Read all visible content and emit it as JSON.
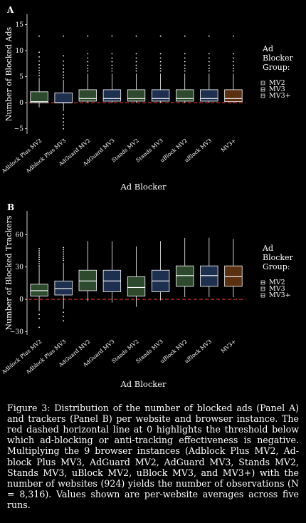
{
  "chart_data": [
    {
      "type": "box",
      "panel_label": "A",
      "xlabel": "Ad Blocker",
      "ylabel": "Number of Blocked Ads",
      "ylim": [
        -6,
        17
      ],
      "yticks": [
        -5,
        0,
        5,
        10,
        15
      ],
      "categories": [
        "Adblock Plus MV2",
        "Adblock Plus MV3",
        "AdGuard MV2",
        "AdGuard MV3",
        "Stands MV2",
        "Stands MV3",
        "uBlock MV2",
        "uBlock MV3",
        "MV3+"
      ],
      "groups": [
        "MV2",
        "MV3",
        "MV2",
        "MV3",
        "MV2",
        "MV3",
        "MV2",
        "MV3",
        "MV3+"
      ],
      "box_q1": [
        0.0,
        0.0,
        0.3,
        0.3,
        0.3,
        0.3,
        0.3,
        0.3,
        0.2
      ],
      "box_median": [
        0.2,
        0.0,
        0.8,
        0.8,
        0.8,
        0.8,
        0.8,
        0.8,
        0.8
      ],
      "box_q3": [
        2.1,
        1.9,
        2.5,
        2.5,
        2.5,
        2.5,
        2.5,
        2.5,
        2.5
      ],
      "whisker_low": [
        -0.9,
        -1.6,
        0.0,
        0.0,
        0.0,
        0.0,
        0.0,
        0.0,
        0.0
      ],
      "whisker_high": [
        4.8,
        4.4,
        5.6,
        5.6,
        5.6,
        5.6,
        5.6,
        5.6,
        5.6
      ],
      "outliers_high": [
        [
          5.2,
          5.7,
          6.2,
          6.7,
          7.3,
          8.0,
          8.8,
          9.7,
          12.8
        ],
        [
          4.8,
          5.3,
          5.9,
          6.5,
          7.2,
          8.0,
          9.0,
          12.8
        ],
        [
          6.1,
          6.6,
          7.2,
          7.9,
          8.6,
          9.4,
          12.8
        ],
        [
          6.1,
          6.6,
          7.2,
          7.9,
          8.6,
          9.4,
          12.8
        ],
        [
          6.1,
          6.6,
          7.2,
          7.9,
          8.6,
          9.4,
          12.8
        ],
        [
          6.1,
          6.6,
          7.2,
          7.9,
          8.6,
          9.4,
          12.8
        ],
        [
          6.1,
          6.6,
          7.2,
          7.9,
          8.6,
          9.4,
          12.8
        ],
        [
          6.1,
          6.6,
          7.2,
          7.9,
          8.6,
          9.4,
          12.8
        ],
        [
          6.1,
          6.6,
          7.2,
          7.9,
          8.6,
          9.4,
          12.8
        ]
      ],
      "outliers_low": [
        [],
        [
          -2.3,
          -3.0,
          -3.7,
          -4.3,
          -5.0
        ],
        [],
        [],
        [],
        [],
        [],
        [],
        []
      ],
      "reference_line": 0,
      "legend": {
        "title": "Ad Blocker Group:",
        "entries": [
          "MV2",
          "MV3",
          "MV3+"
        ],
        "placement": "right"
      }
    },
    {
      "type": "box",
      "panel_label": "B",
      "xlabel": "Ad Blocker",
      "ylabel": "Number of Blocked Trackers",
      "ylim": [
        -33,
        82
      ],
      "yticks": [
        -30,
        0,
        30,
        60
      ],
      "categories": [
        "Adblock Plus MV2",
        "Adblock Plus MV3",
        "AdGuard MV2",
        "AdGuard MV3",
        "Stands MV2",
        "Stands MV3",
        "uBlock MV2",
        "uBlock MV3",
        "MV3+"
      ],
      "groups": [
        "MV2",
        "MV3",
        "MV2",
        "MV3",
        "MV2",
        "MV3",
        "MV2",
        "MV3",
        "MV3+"
      ],
      "box_q1": [
        3,
        4,
        8,
        7,
        3,
        7,
        12,
        12,
        12
      ],
      "box_median": [
        8,
        10,
        17,
        17,
        11,
        17,
        22,
        22,
        21
      ],
      "box_q3": [
        14,
        17,
        27,
        27,
        21,
        27,
        31,
        31,
        31
      ],
      "whisker_low": [
        -11,
        -9,
        -2,
        -3,
        -7,
        -1,
        2,
        2,
        2
      ],
      "whisker_high": [
        30,
        34,
        54,
        54,
        49,
        54,
        57,
        57,
        56
      ],
      "outliers_high": [
        [
          31,
          33,
          35,
          37,
          39,
          41,
          43,
          45,
          47
        ],
        [
          36,
          38,
          40,
          42,
          44,
          46,
          48
        ],
        [],
        [],
        [],
        [],
        [],
        [],
        []
      ],
      "outliers_low": [
        [
          -14,
          -18,
          -26
        ],
        [
          -12,
          -16,
          -20
        ],
        [],
        [],
        [],
        [],
        [],
        [],
        []
      ],
      "reference_line": 0,
      "legend": {
        "title": "Ad Blocker Group:",
        "entries": [
          "MV2",
          "MV3",
          "MV3+"
        ],
        "placement": "right"
      }
    }
  ],
  "colors": {
    "MV2": "#2d4a2d",
    "MV3": "#1e3050",
    "MV3+": "#5a3010",
    "reference_line": "#e03030",
    "background": "#000000",
    "foreground": "#ffffff"
  },
  "legend": {
    "title_lines": [
      "Ad",
      "Blocker",
      "Group:"
    ],
    "entries": [
      "MV2",
      "MV3",
      "MV3+"
    ]
  },
  "caption": "Figure 3: Distribution of the number of blocked ads (Panel A) and trackers (Panel B) per website and browser instance. The red dashed horizontal line at 0 highlights the threshold below which ad-blocking or anti-tracking effectiveness is negative. Multiplying the 9 browser instances (Adblock Plus MV2, Ad-block Plus MV3, AdGuard MV2, AdGuard MV3, Stands MV2, Stands MV3, uBlock MV2, uBlock MV3, and MV3+) with the number of websites (924) yields the number of observations (N = 8,316). Values shown are per-website averages across five runs."
}
